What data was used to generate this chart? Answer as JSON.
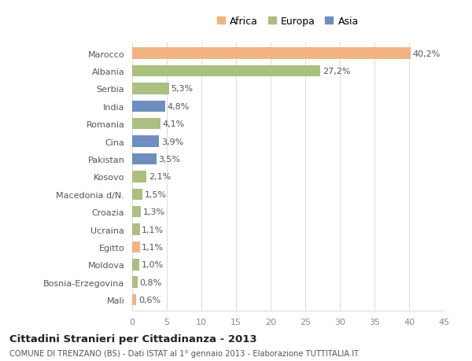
{
  "categories": [
    "Marocco",
    "Albania",
    "Serbia",
    "India",
    "Romania",
    "Cina",
    "Pakistan",
    "Kosovo",
    "Macedonia d/N.",
    "Croazia",
    "Ucraina",
    "Egitto",
    "Moldova",
    "Bosnia-Erzegovina",
    "Mali"
  ],
  "values": [
    40.2,
    27.2,
    5.3,
    4.8,
    4.1,
    3.9,
    3.5,
    2.1,
    1.5,
    1.3,
    1.1,
    1.1,
    1.0,
    0.8,
    0.6
  ],
  "labels": [
    "40,2%",
    "27,2%",
    "5,3%",
    "4,8%",
    "4,1%",
    "3,9%",
    "3,5%",
    "2,1%",
    "1,5%",
    "1,3%",
    "1,1%",
    "1,1%",
    "1,0%",
    "0,8%",
    "0,6%"
  ],
  "continents": [
    "Africa",
    "Europa",
    "Europa",
    "Asia",
    "Europa",
    "Asia",
    "Asia",
    "Europa",
    "Europa",
    "Europa",
    "Europa",
    "Africa",
    "Europa",
    "Europa",
    "Africa"
  ],
  "colors": {
    "Africa": "#F0B482",
    "Europa": "#AABF80",
    "Asia": "#6E8EBF"
  },
  "legend_labels": [
    "Africa",
    "Europa",
    "Asia"
  ],
  "legend_colors": [
    "#F0B482",
    "#AABF80",
    "#6E8EBF"
  ],
  "xlim": [
    0,
    45
  ],
  "xticks": [
    0,
    5,
    10,
    15,
    20,
    25,
    30,
    35,
    40,
    45
  ],
  "title_main": "Cittadini Stranieri per Cittadinanza - 2013",
  "title_sub": "COMUNE DI TRENZANO (BS) - Dati ISTAT al 1° gennaio 2013 - Elaborazione TUTTITALIA.IT",
  "background_color": "#FFFFFF",
  "grid_color": "#DDDDDD",
  "bar_height": 0.65,
  "label_fontsize": 8.0,
  "tick_fontsize": 8.0,
  "legend_fontsize": 9.0
}
